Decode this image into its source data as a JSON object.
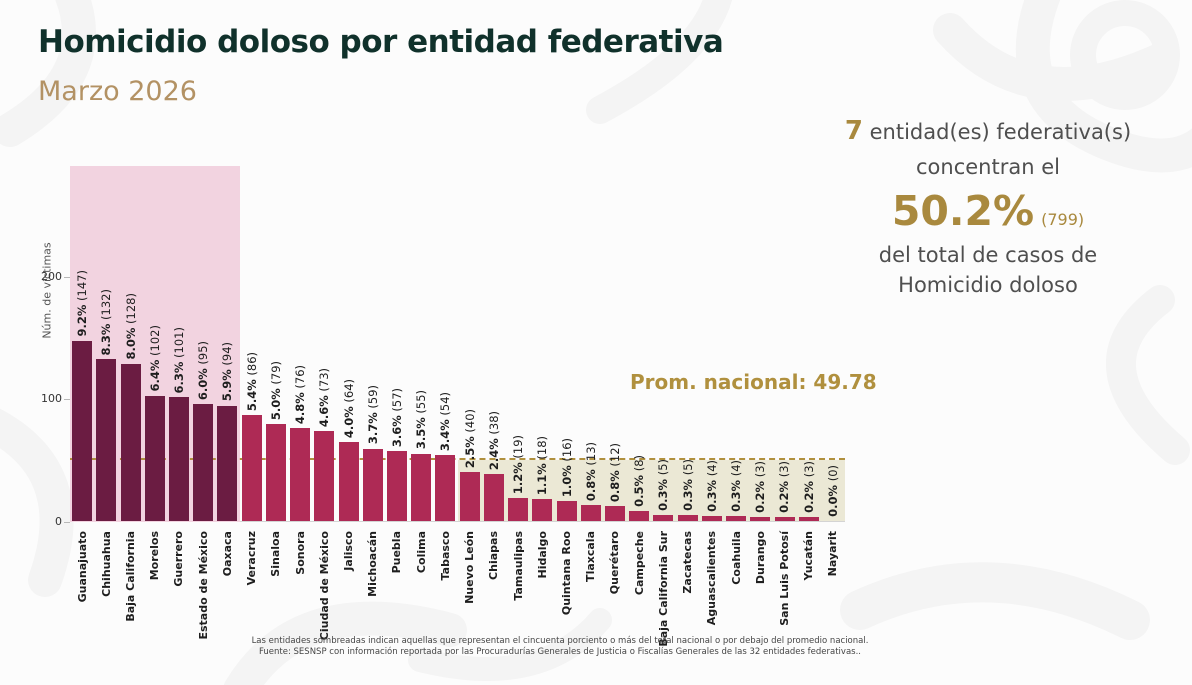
{
  "header": {
    "title": "Homicidio doloso por entidad federativa",
    "subtitle": "Marzo 2026"
  },
  "highlight": {
    "entity_count": "7",
    "line1": " entidad(es) federativa(s)",
    "line2": "concentran el",
    "percentage": "50.2%",
    "case_count": "(799)",
    "line4": "del total de casos de",
    "line5": "Homicidio doloso"
  },
  "chart_data": {
    "type": "bar",
    "title": "Homicidio doloso por entidad federativa - Marzo 2026",
    "ylabel": "Núm. de víctimas",
    "yticks": [
      0,
      100,
      200
    ],
    "ylim": [
      0,
      290
    ],
    "grid": false,
    "national_avg": 49.78,
    "national_avg_label": "Prom. nacional: 49.78",
    "shaded_entities": 7,
    "categories": [
      "Guanajuato",
      "Chihuahua",
      "Baja California",
      "Morelos",
      "Guerrero",
      "Estado de México",
      "Oaxaca",
      "Veracruz",
      "Sinaloa",
      "Sonora",
      "Ciudad de México",
      "Jalisco",
      "Michoacán",
      "Puebla",
      "Colima",
      "Tabasco",
      "Nuevo León",
      "Chiapas",
      "Tamaulipas",
      "Hidalgo",
      "Quintana Roo",
      "Tlaxcala",
      "Querétaro",
      "Campeche",
      "Baja California Sur",
      "Zacatecas",
      "Aguascalientes",
      "Coahuila",
      "Durango",
      "San Luis Potosí",
      "Yucatán",
      "Nayarit"
    ],
    "values": [
      147,
      132,
      128,
      102,
      101,
      95,
      94,
      86,
      79,
      76,
      73,
      64,
      59,
      57,
      55,
      54,
      40,
      38,
      19,
      18,
      16,
      13,
      12,
      8,
      5,
      5,
      4,
      4,
      3,
      3,
      3,
      0
    ],
    "pct_labels": [
      "9.2%",
      "8.3%",
      "8.0%",
      "6.4%",
      "6.3%",
      "6.0%",
      "5.9%",
      "5.4%",
      "5.0%",
      "4.8%",
      "4.6%",
      "4.0%",
      "3.7%",
      "3.6%",
      "3.5%",
      "3.4%",
      "2.5%",
      "2.4%",
      "1.2%",
      "1.1%",
      "1.0%",
      "0.8%",
      "0.8%",
      "0.5%",
      "0.3%",
      "0.3%",
      "0.3%",
      "0.3%",
      "0.2%",
      "0.2%",
      "0.2%",
      "0.0%"
    ]
  },
  "footnote": {
    "line1": "Las entidades sombreadas indican aquellas que representan el cincuenta porciento o más del total nacional o por debajo del promedio nacional.",
    "line2": "Fuente: SESNSP con información reportada por las Procuradurías Generales de Justicia o Fiscalías Generales de las 32 entidades federativas.."
  },
  "colors": {
    "title_green": "#10312B",
    "subtitle_gold": "#B39264",
    "accent_gold": "#A9893E",
    "text_gray": "#4F4F4F",
    "bar_top_entities": "#6B1C42",
    "bar_others": "#AE2A55",
    "shade_top_region": "#F2D3E0",
    "shade_below_avg_region": "#EBE8D5",
    "avg_line_gold": "#B0903E"
  }
}
